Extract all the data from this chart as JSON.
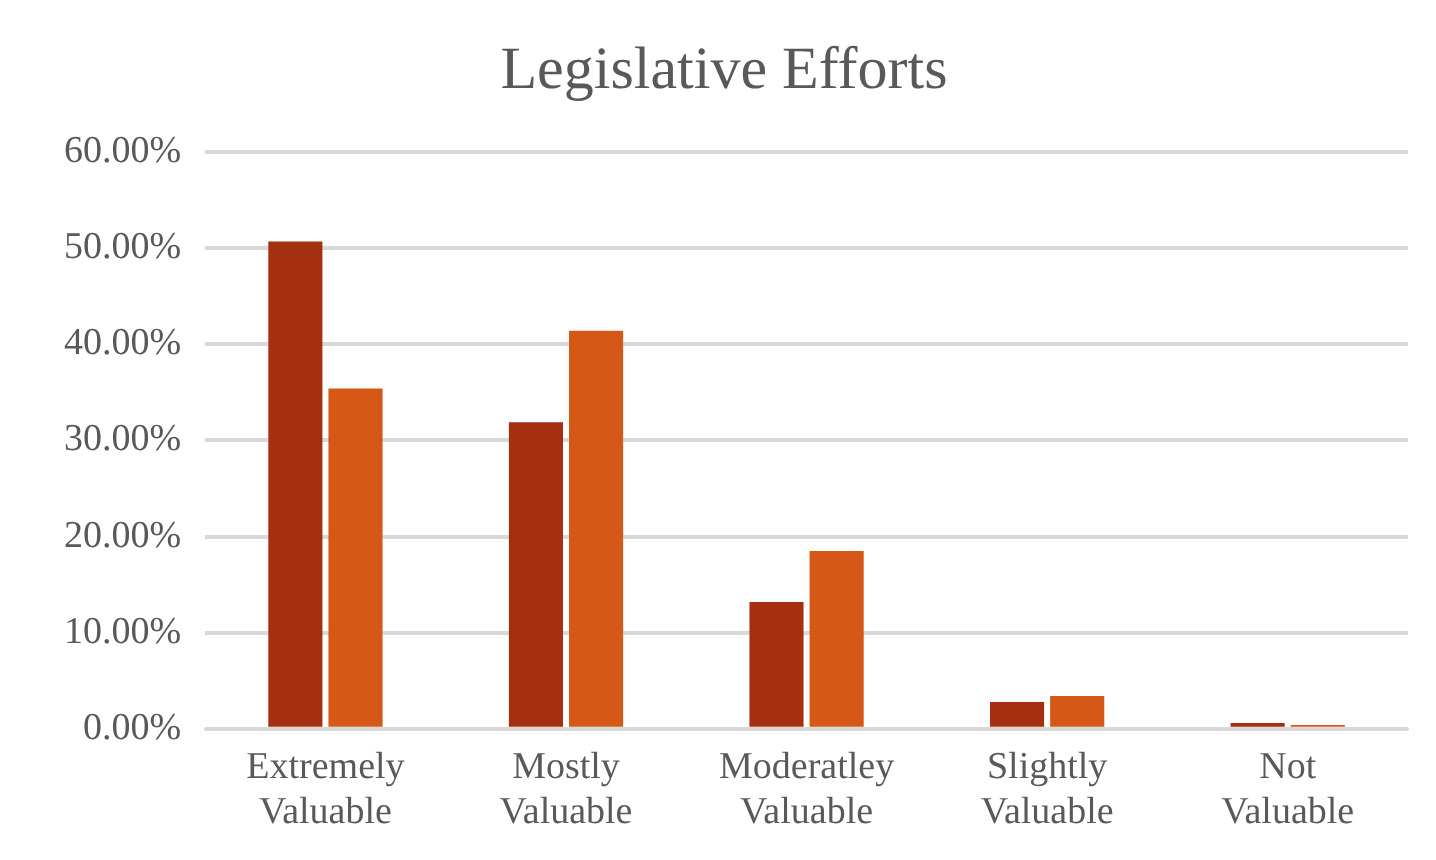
{
  "chart_data": {
    "type": "bar",
    "title": "Legislative Efforts",
    "categories": [
      "Extremely Valuable",
      "Mostly Valuable",
      "Moderatley Valuable",
      "Slightly Valuable",
      "Not Valuable"
    ],
    "series": [
      {
        "color": "#a52f11",
        "values": [
          50.7,
          31.9,
          13.2,
          2.8,
          0.6
        ]
      },
      {
        "color": "#d55816",
        "values": [
          35.4,
          41.4,
          18.5,
          3.4,
          0.4
        ]
      }
    ],
    "ylim": [
      0,
      60
    ],
    "yticks": [
      {
        "value": 0,
        "label": "0.00%"
      },
      {
        "value": 10,
        "label": "10.00%"
      },
      {
        "value": 20,
        "label": "20.00%"
      },
      {
        "value": 30,
        "label": "30.00%"
      },
      {
        "value": 40,
        "label": "40.00%"
      },
      {
        "value": 50,
        "label": "50.00%"
      },
      {
        "value": 60,
        "label": "60.00%"
      }
    ],
    "grid": "y",
    "legend": false
  }
}
